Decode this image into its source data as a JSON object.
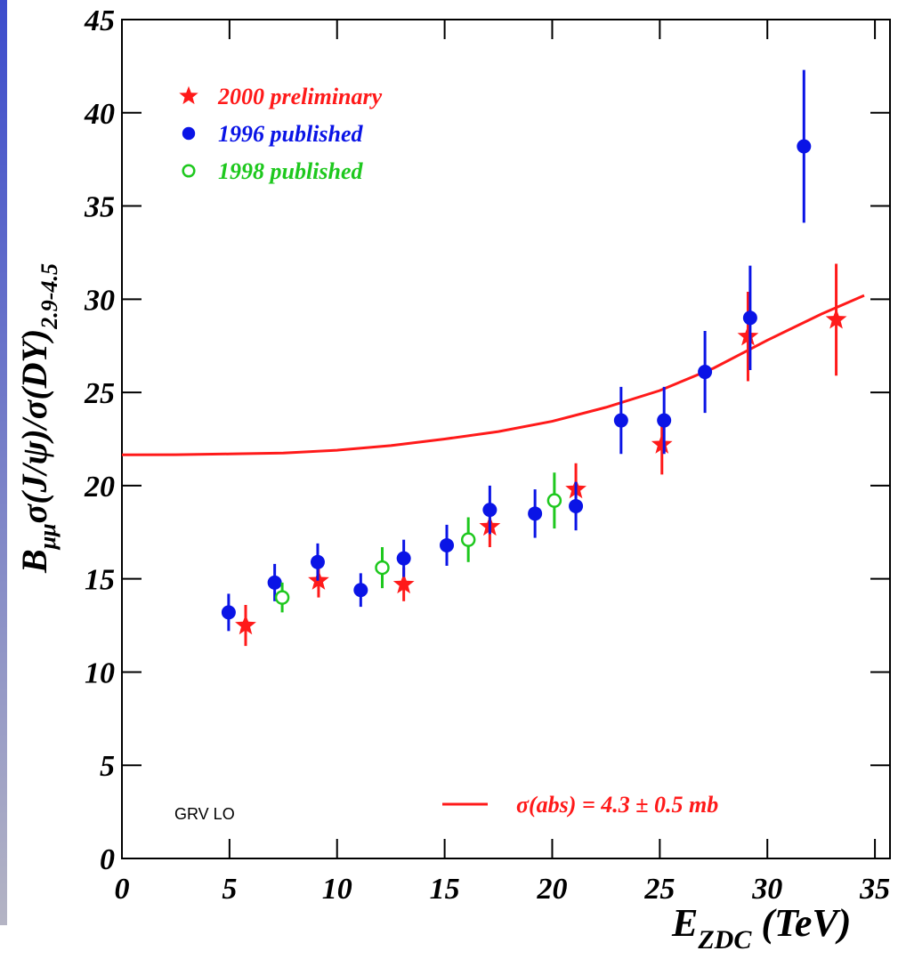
{
  "chart_data": {
    "type": "scatter",
    "y_label": [
      "B",
      "μμ",
      "σ(J/ψ)/σ(DY)",
      "2.9-4.5"
    ],
    "x_label": [
      "E",
      "ZDC",
      " (TeV)"
    ],
    "annotation": "GRV LO",
    "xlim": [
      0,
      35.7
    ],
    "ylim": [
      0,
      45
    ],
    "xticks": [
      0,
      5,
      10,
      15,
      20,
      25,
      30,
      35
    ],
    "yticks": [
      0,
      5,
      10,
      15,
      20,
      25,
      30,
      35,
      40,
      45
    ],
    "series": [
      {
        "name": "2000 preliminary",
        "color": "#ff1a1a",
        "marker": "star",
        "x": [
          5.75,
          9.14,
          13.1,
          17.1,
          21.1,
          25.1,
          29.1,
          33.2
        ],
        "values": [
          12.5,
          14.9,
          14.7,
          17.8,
          19.8,
          22.2,
          28.0,
          28.9
        ],
        "errors": [
          1.1,
          0.9,
          0.9,
          1.1,
          1.4,
          1.6,
          2.4,
          3.0
        ]
      },
      {
        "name": "1996 published",
        "color": "#0a14e6",
        "marker": "circle",
        "x": [
          4.96,
          7.1,
          9.1,
          11.1,
          13.1,
          15.1,
          17.1,
          19.2,
          21.1,
          23.2,
          25.2,
          27.1,
          29.2,
          31.7
        ],
        "values": [
          13.2,
          14.8,
          15.9,
          14.4,
          16.1,
          16.8,
          18.7,
          18.5,
          18.9,
          23.5,
          23.5,
          26.1,
          29.0,
          38.2
        ],
        "errors": [
          1.0,
          1.0,
          1.0,
          0.9,
          1.0,
          1.1,
          1.3,
          1.3,
          1.3,
          1.8,
          1.8,
          2.2,
          2.8,
          4.1
        ]
      },
      {
        "name": "1998 published",
        "color": "#1ec81e",
        "marker": "open-circle",
        "x": [
          7.45,
          12.1,
          16.1,
          20.1
        ],
        "values": [
          14.0,
          15.6,
          17.1,
          19.2
        ],
        "errors": [
          0.8,
          1.1,
          1.2,
          1.5
        ]
      }
    ],
    "curve": {
      "name": "σ(abs) = 4.3 ± 0.5 mb",
      "color": "#ff1a1a",
      "x": [
        0,
        2.5,
        5,
        7.5,
        10,
        12.5,
        15,
        17.5,
        20,
        22.5,
        25,
        27.5,
        30,
        32.5,
        34.5
      ],
      "values": [
        21.65,
        21.66,
        21.7,
        21.75,
        21.9,
        22.15,
        22.5,
        22.9,
        23.45,
        24.2,
        25.1,
        26.3,
        27.8,
        29.2,
        30.2
      ]
    }
  }
}
